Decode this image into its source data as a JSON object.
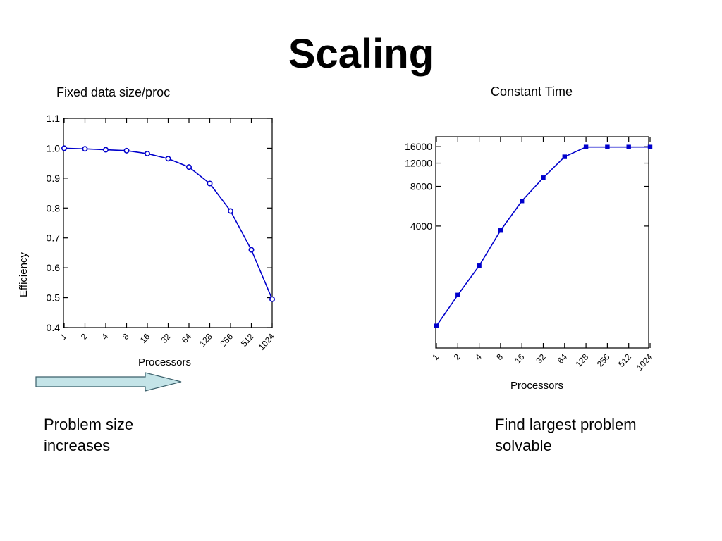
{
  "slide": {
    "title": "Scaling",
    "left_caption_lines": [
      "Problem size",
      "increases"
    ],
    "right_caption_lines": [
      "Find largest problem",
      "solvable"
    ]
  },
  "colors": {
    "series": "#0000cc",
    "arrow_fill": "#c4e4e8",
    "arrow_stroke": "#3a5f6a"
  },
  "chart_data": [
    {
      "type": "line",
      "title": "Fixed data size/proc",
      "xlabel": "Processors",
      "ylabel": "Efficiency",
      "x": [
        "1",
        "2",
        "4",
        "8",
        "16",
        "32",
        "64",
        "128",
        "256",
        "512",
        "1024"
      ],
      "y": [
        1.0,
        0.998,
        0.995,
        0.992,
        0.982,
        0.965,
        0.937,
        0.882,
        0.79,
        0.66,
        0.495
      ],
      "ylim": [
        0.4,
        1.1
      ],
      "yticks": [
        "1.1",
        "1.0",
        "0.9",
        "0.8",
        "0.7",
        "0.6",
        "0.5",
        "0.4"
      ],
      "ytick_values": [
        1.1,
        1.0,
        0.9,
        0.8,
        0.7,
        0.6,
        0.5,
        0.4
      ],
      "marker": "open-circle",
      "grid": false
    },
    {
      "type": "line",
      "title": "Constant Time",
      "xlabel": "Processors",
      "ylabel": "",
      "x": [
        "1",
        "2",
        "4",
        "8",
        "16",
        "32",
        "64",
        "128",
        "256",
        "512",
        "1024"
      ],
      "y": [
        700,
        1200,
        2000,
        3700,
        6200,
        9300,
        13400,
        15900,
        15900,
        15900,
        15900
      ],
      "yscale": "log",
      "ylim": [
        500,
        20000
      ],
      "yticks": [
        "16000",
        "12000",
        "8000",
        "4000"
      ],
      "ytick_values": [
        16000,
        12000,
        8000,
        4000
      ],
      "marker": "filled-square",
      "grid": false
    }
  ]
}
